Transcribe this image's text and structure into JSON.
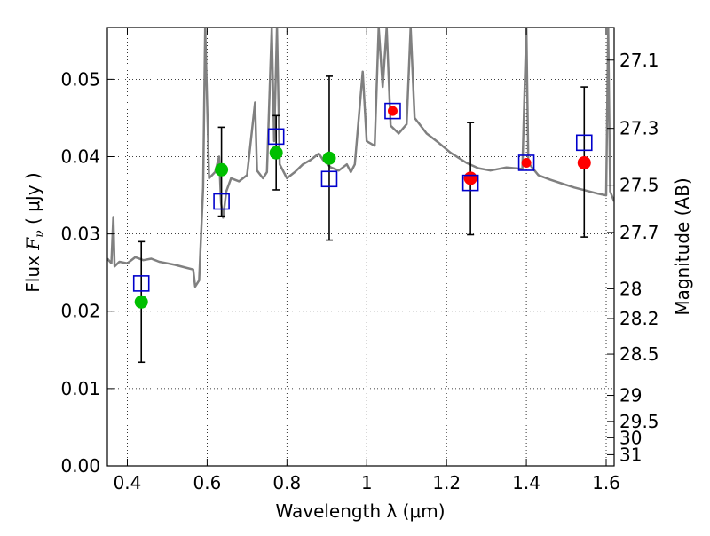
{
  "chart_data": {
    "type": "scatter",
    "xlabel": "Wavelength  λ (μm)",
    "ylabel_left": {
      "prefix": "Flux  ",
      "var": "F",
      "sub": "ν",
      "unit": "  ( μJy )"
    },
    "ylabel_right": "Magnitude (AB)",
    "xlim": [
      0.35,
      1.62
    ],
    "ylim": [
      0.0,
      0.0567
    ],
    "grid": true,
    "x_ticks": [
      0.4,
      0.6,
      0.8,
      1.0,
      1.2,
      1.4,
      1.6
    ],
    "x_tick_labels": [
      "0.4",
      "0.6",
      "0.8",
      "1",
      "1.2",
      "1.4",
      "1.6"
    ],
    "y_ticks": [
      0.0,
      0.01,
      0.02,
      0.03,
      0.04,
      0.05
    ],
    "y_tick_labels": [
      "0.00",
      "0.01",
      "0.02",
      "0.03",
      "0.04",
      "0.05"
    ],
    "mag_ticks": [
      {
        "label": "27.1",
        "mag": 27.1
      },
      {
        "label": "27.3",
        "mag": 27.3
      },
      {
        "label": "27.5",
        "mag": 27.5
      },
      {
        "label": "27.7",
        "mag": 27.7
      },
      {
        "label": "28",
        "mag": 28.0
      },
      {
        "label": "28.2",
        "mag": 28.2
      },
      {
        "label": "28.5",
        "mag": 28.5
      },
      {
        "label": "29",
        "mag": 29.0
      },
      {
        "label": "29.5",
        "mag": 29.5
      },
      {
        "label": "30",
        "mag": 30.0
      },
      {
        "label": "31",
        "mag": 31.0
      }
    ],
    "observed_green": [
      {
        "x": 0.435,
        "y": 0.0212,
        "err_low": 0.0134,
        "err_high": 0.029
      },
      {
        "x": 0.636,
        "y": 0.0383,
        "err_low": 0.0323,
        "err_high": 0.0438
      },
      {
        "x": 0.773,
        "y": 0.0405,
        "err_low": 0.0357,
        "err_high": 0.0453
      },
      {
        "x": 0.906,
        "y": 0.0398,
        "err_low": 0.0292,
        "err_high": 0.0504
      }
    ],
    "observed_red": [
      {
        "x": 1.26,
        "y": 0.0372,
        "err_low": 0.0299,
        "err_high": 0.0444
      },
      {
        "x": 1.4,
        "y": 0.0392,
        "err_low": null,
        "err_high": null
      },
      {
        "x": 1.065,
        "y": 0.0459,
        "err_low": null,
        "err_high": null
      },
      {
        "x": 1.545,
        "y": 0.0392,
        "err_low": 0.0296,
        "err_high": 0.049
      }
    ],
    "model_squares": [
      {
        "x": 0.435,
        "y": 0.0236
      },
      {
        "x": 0.636,
        "y": 0.0342
      },
      {
        "x": 0.773,
        "y": 0.0426
      },
      {
        "x": 0.906,
        "y": 0.0371
      },
      {
        "x": 1.065,
        "y": 0.0459
      },
      {
        "x": 1.26,
        "y": 0.0366
      },
      {
        "x": 1.4,
        "y": 0.0392
      },
      {
        "x": 1.545,
        "y": 0.0418
      }
    ],
    "spectrum": [
      [
        0.35,
        0.0268
      ],
      [
        0.36,
        0.0262
      ],
      [
        0.365,
        0.0322
      ],
      [
        0.368,
        0.0258
      ],
      [
        0.38,
        0.0264
      ],
      [
        0.4,
        0.0262
      ],
      [
        0.42,
        0.027
      ],
      [
        0.44,
        0.0266
      ],
      [
        0.46,
        0.0268
      ],
      [
        0.48,
        0.0264
      ],
      [
        0.5,
        0.0262
      ],
      [
        0.52,
        0.026
      ],
      [
        0.55,
        0.0256
      ],
      [
        0.565,
        0.0254
      ],
      [
        0.57,
        0.0232
      ],
      [
        0.58,
        0.024
      ],
      [
        0.59,
        0.036
      ],
      [
        0.595,
        0.0567
      ],
      [
        0.605,
        0.0372
      ],
      [
        0.62,
        0.038
      ],
      [
        0.63,
        0.04
      ],
      [
        0.635,
        0.034
      ],
      [
        0.64,
        0.0321
      ],
      [
        0.648,
        0.0355
      ],
      [
        0.66,
        0.0372
      ],
      [
        0.68,
        0.0368
      ],
      [
        0.7,
        0.0376
      ],
      [
        0.72,
        0.047
      ],
      [
        0.725,
        0.0382
      ],
      [
        0.74,
        0.0372
      ],
      [
        0.75,
        0.038
      ],
      [
        0.762,
        0.0567
      ],
      [
        0.768,
        0.042
      ],
      [
        0.775,
        0.0567
      ],
      [
        0.782,
        0.039
      ],
      [
        0.8,
        0.0372
      ],
      [
        0.82,
        0.038
      ],
      [
        0.84,
        0.039
      ],
      [
        0.86,
        0.0396
      ],
      [
        0.88,
        0.0404
      ],
      [
        0.89,
        0.0396
      ],
      [
        0.91,
        0.0386
      ],
      [
        0.93,
        0.0382
      ],
      [
        0.95,
        0.039
      ],
      [
        0.96,
        0.038
      ],
      [
        0.97,
        0.039
      ],
      [
        0.99,
        0.051
      ],
      [
        1.0,
        0.042
      ],
      [
        1.02,
        0.0414
      ],
      [
        1.03,
        0.0567
      ],
      [
        1.04,
        0.049
      ],
      [
        1.05,
        0.0567
      ],
      [
        1.06,
        0.044
      ],
      [
        1.08,
        0.043
      ],
      [
        1.1,
        0.0442
      ],
      [
        1.11,
        0.0567
      ],
      [
        1.12,
        0.045
      ],
      [
        1.15,
        0.043
      ],
      [
        1.18,
        0.0418
      ],
      [
        1.21,
        0.0405
      ],
      [
        1.25,
        0.0392
      ],
      [
        1.28,
        0.0385
      ],
      [
        1.31,
        0.0382
      ],
      [
        1.35,
        0.0386
      ],
      [
        1.39,
        0.0384
      ],
      [
        1.4,
        0.0567
      ],
      [
        1.405,
        0.0392
      ],
      [
        1.43,
        0.0376
      ],
      [
        1.46,
        0.037
      ],
      [
        1.49,
        0.0365
      ],
      [
        1.52,
        0.036
      ],
      [
        1.55,
        0.0356
      ],
      [
        1.58,
        0.0352
      ],
      [
        1.6,
        0.035
      ],
      [
        1.605,
        0.0567
      ],
      [
        1.61,
        0.0355
      ],
      [
        1.62,
        0.0342
      ]
    ],
    "colors": {
      "spectrum": "#808080",
      "green": "#00bf00",
      "red": "#ff0000",
      "square": "#0000cc",
      "errorbar": "#000000",
      "grid": "#000000",
      "axis": "#000000"
    }
  }
}
